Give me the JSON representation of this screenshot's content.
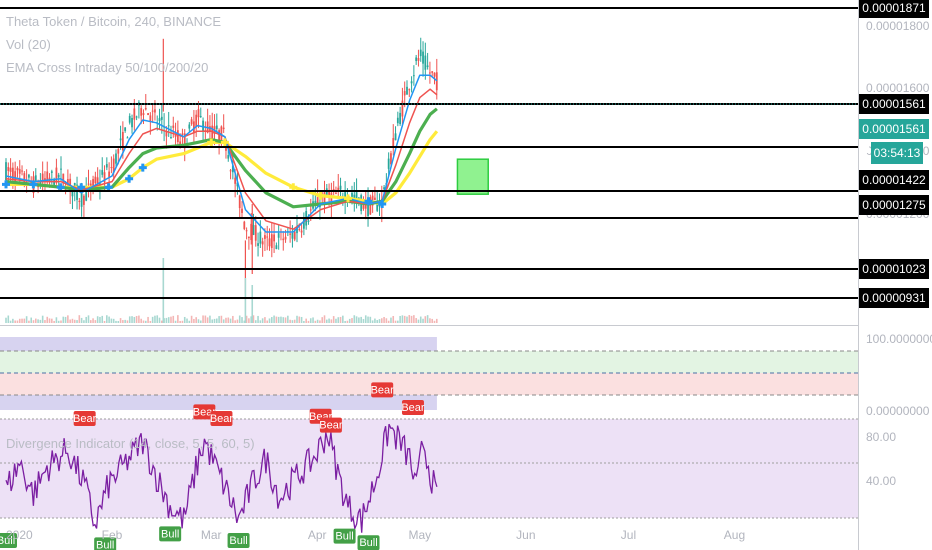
{
  "legend": {
    "symbol": "Theta Token / Bitcoin, 240, BINANCE",
    "volume": "Vol (20)",
    "ema": "EMA Cross Intraday 50/100/200/20",
    "divergence": "Divergence Indicator (14, close, 5, 5, 60, 5)"
  },
  "colors": {
    "up": "#26a69a",
    "down": "#ef5350",
    "ema_fast": "#2196f3",
    "ema_mid": "#ef5350",
    "ema_slow": "#4caf50",
    "ema_long": "#ffeb3b",
    "rsi": "#7b1fa2",
    "bull": "#43a047",
    "bear": "#e53935",
    "box": "#7cf07c",
    "level": "#000000"
  },
  "timer": "03:54:13",
  "chart_data": [
    {
      "type": "candlestick",
      "title": "Theta Token / Bitcoin, 240, BINANCE",
      "ylim": [
        8.6e-06,
        1.91e-05
      ],
      "y_ticks": [
        "0.00001800",
        "0.00001600",
        "0.00001400",
        "0.00001200"
      ],
      "x_ticks": [
        "2020",
        "Feb",
        "Mar",
        "Apr",
        "May",
        "Jun",
        "Jul",
        "Aug"
      ],
      "x_tick_days": [
        0,
        31,
        60,
        91,
        121,
        152,
        182,
        213
      ],
      "price_path": [
        [
          0,
          1.32
        ],
        [
          8,
          1.27
        ],
        [
          16,
          1.3
        ],
        [
          22,
          1.22
        ],
        [
          31,
          1.33
        ],
        [
          36,
          1.48
        ],
        [
          40,
          1.55
        ],
        [
          44,
          1.5
        ],
        [
          52,
          1.42
        ],
        [
          56,
          1.51
        ],
        [
          60,
          1.46
        ],
        [
          64,
          1.44
        ],
        [
          70,
          1.12
        ],
        [
          76,
          1.06
        ],
        [
          84,
          1.09
        ],
        [
          92,
          1.22
        ],
        [
          100,
          1.24
        ],
        [
          106,
          1.19
        ],
        [
          110,
          1.21
        ],
        [
          114,
          1.46
        ],
        [
          118,
          1.64
        ],
        [
          121,
          1.73
        ],
        [
          124,
          1.67
        ],
        [
          126,
          1.64
        ]
      ],
      "ema_fast": [
        [
          0,
          1.3
        ],
        [
          8,
          1.28
        ],
        [
          16,
          1.29
        ],
        [
          22,
          1.24
        ],
        [
          31,
          1.3
        ],
        [
          36,
          1.43
        ],
        [
          40,
          1.5
        ],
        [
          44,
          1.49
        ],
        [
          52,
          1.44
        ],
        [
          56,
          1.48
        ],
        [
          60,
          1.47
        ],
        [
          64,
          1.44
        ],
        [
          70,
          1.18
        ],
        [
          76,
          1.1
        ],
        [
          84,
          1.1
        ],
        [
          92,
          1.2
        ],
        [
          100,
          1.22
        ],
        [
          106,
          1.2
        ],
        [
          110,
          1.21
        ],
        [
          114,
          1.4
        ],
        [
          118,
          1.57
        ],
        [
          121,
          1.66
        ],
        [
          124,
          1.66
        ],
        [
          126,
          1.64
        ]
      ],
      "ema_mid": [
        [
          0,
          1.29
        ],
        [
          8,
          1.28
        ],
        [
          16,
          1.28
        ],
        [
          22,
          1.25
        ],
        [
          31,
          1.28
        ],
        [
          36,
          1.38
        ],
        [
          40,
          1.45
        ],
        [
          44,
          1.47
        ],
        [
          52,
          1.44
        ],
        [
          56,
          1.46
        ],
        [
          60,
          1.46
        ],
        [
          64,
          1.44
        ],
        [
          70,
          1.24
        ],
        [
          76,
          1.14
        ],
        [
          84,
          1.11
        ],
        [
          92,
          1.18
        ],
        [
          100,
          1.21
        ],
        [
          106,
          1.2
        ],
        [
          110,
          1.21
        ],
        [
          114,
          1.34
        ],
        [
          118,
          1.49
        ],
        [
          121,
          1.58
        ],
        [
          124,
          1.61
        ],
        [
          126,
          1.59
        ]
      ],
      "ema_slow": [
        [
          0,
          1.28
        ],
        [
          8,
          1.27
        ],
        [
          16,
          1.26
        ],
        [
          22,
          1.25
        ],
        [
          31,
          1.26
        ],
        [
          36,
          1.33
        ],
        [
          40,
          1.38
        ],
        [
          44,
          1.4
        ],
        [
          52,
          1.41
        ],
        [
          56,
          1.42
        ],
        [
          60,
          1.43
        ],
        [
          64,
          1.42
        ],
        [
          70,
          1.32
        ],
        [
          76,
          1.24
        ],
        [
          84,
          1.19
        ],
        [
          92,
          1.2
        ],
        [
          100,
          1.21
        ],
        [
          106,
          1.2
        ],
        [
          110,
          1.21
        ],
        [
          114,
          1.28
        ],
        [
          118,
          1.38
        ],
        [
          121,
          1.46
        ],
        [
          124,
          1.52
        ],
        [
          126,
          1.54
        ]
      ],
      "ema_long": [
        [
          0,
          1.27
        ],
        [
          8,
          1.27
        ],
        [
          16,
          1.26
        ],
        [
          22,
          1.26
        ],
        [
          31,
          1.26
        ],
        [
          36,
          1.29
        ],
        [
          40,
          1.33
        ],
        [
          44,
          1.36
        ],
        [
          52,
          1.38
        ],
        [
          56,
          1.4
        ],
        [
          60,
          1.42
        ],
        [
          64,
          1.42
        ],
        [
          70,
          1.37
        ],
        [
          76,
          1.31
        ],
        [
          84,
          1.26
        ],
        [
          92,
          1.23
        ],
        [
          100,
          1.22
        ],
        [
          106,
          1.21
        ],
        [
          110,
          1.2
        ],
        [
          114,
          1.24
        ],
        [
          118,
          1.31
        ],
        [
          121,
          1.37
        ],
        [
          124,
          1.43
        ],
        [
          126,
          1.46
        ]
      ],
      "ema_cross_marks_day": [
        0,
        8,
        16,
        22,
        30,
        36,
        40,
        60,
        64,
        84,
        92,
        100,
        106,
        110
      ],
      "target_box": {
        "day_start": 132,
        "day_end": 141,
        "price_low": 1.235e-05,
        "price_high": 1.36e-05
      },
      "levels": [
        {
          "price": "0.00001871",
          "label": "0.00001871",
          "style": "solid"
        },
        {
          "price": "0.00001561",
          "label": "0.00001561",
          "style": "solid"
        },
        {
          "price": "0.00001561",
          "label": "0.00001561",
          "style": "current"
        },
        {
          "price": "0.00001476",
          "label": "",
          "style": "solid"
        },
        {
          "price": "0.00001422",
          "label": "0.00001422",
          "style": "solid"
        },
        {
          "price": "0.00001275",
          "label": "0.00001275",
          "style": "solid"
        },
        {
          "price": "0.00001023",
          "label": "0.00001023",
          "style": "solid"
        },
        {
          "price": "0.00000931",
          "label": "0.00000931",
          "style": "solid"
        }
      ],
      "volume_spike_days": [
        46,
        70,
        72
      ]
    },
    {
      "type": "area",
      "title": "",
      "y_ticks": [
        "100.00000000",
        "0.00000000"
      ],
      "ylim": [
        0,
        100
      ],
      "band_day_end": 126,
      "zones": [
        "upper",
        "green",
        "red",
        "lower"
      ]
    },
    {
      "type": "line",
      "title": "Divergence Indicator (14, close, 5, 5, 60, 5)",
      "y_ticks": [
        "80.00",
        "40.00"
      ],
      "ylim": [
        20,
        90
      ],
      "rsi_path": [
        [
          0,
          48
        ],
        [
          4,
          60
        ],
        [
          8,
          46
        ],
        [
          12,
          58
        ],
        [
          18,
          66
        ],
        [
          23,
          50
        ],
        [
          26,
          32
        ],
        [
          30,
          50
        ],
        [
          34,
          58
        ],
        [
          40,
          70
        ],
        [
          44,
          54
        ],
        [
          48,
          40
        ],
        [
          52,
          34
        ],
        [
          56,
          60
        ],
        [
          58,
          70
        ],
        [
          62,
          56
        ],
        [
          66,
          42
        ],
        [
          68,
          34
        ],
        [
          72,
          50
        ],
        [
          76,
          62
        ],
        [
          80,
          44
        ],
        [
          84,
          52
        ],
        [
          90,
          62
        ],
        [
          94,
          74
        ],
        [
          98,
          50
        ],
        [
          100,
          40
        ],
        [
          104,
          34
        ],
        [
          108,
          52
        ],
        [
          112,
          76
        ],
        [
          115,
          70
        ],
        [
          118,
          62
        ],
        [
          120,
          48
        ],
        [
          122,
          70
        ],
        [
          124,
          56
        ],
        [
          126,
          44
        ]
      ],
      "signals": [
        {
          "label": "Bull",
          "day": 0,
          "value": 30,
          "kind": "bull"
        },
        {
          "label": "Bear",
          "day": 23,
          "value": 75,
          "kind": "bear"
        },
        {
          "label": "Bull",
          "day": 29,
          "value": 28,
          "kind": "bull"
        },
        {
          "label": "Bull",
          "day": 48,
          "value": 33,
          "kind": "bull"
        },
        {
          "label": "Bear",
          "day": 58,
          "value": 78,
          "kind": "bear"
        },
        {
          "label": "Bear",
          "day": 63,
          "value": 75,
          "kind": "bear"
        },
        {
          "label": "Bull",
          "day": 68,
          "value": 30,
          "kind": "bull"
        },
        {
          "label": "Bear",
          "day": 92,
          "value": 76,
          "kind": "bear"
        },
        {
          "label": "Bear",
          "day": 95,
          "value": 72,
          "kind": "bear"
        },
        {
          "label": "Bull",
          "day": 99,
          "value": 32,
          "kind": "bull"
        },
        {
          "label": "Bull",
          "day": 106,
          "value": 29,
          "kind": "bull"
        },
        {
          "label": "Bear",
          "day": 110,
          "value": 88,
          "kind": "bear"
        },
        {
          "label": "Bear",
          "day": 119,
          "value": 80,
          "kind": "bear"
        }
      ]
    }
  ]
}
